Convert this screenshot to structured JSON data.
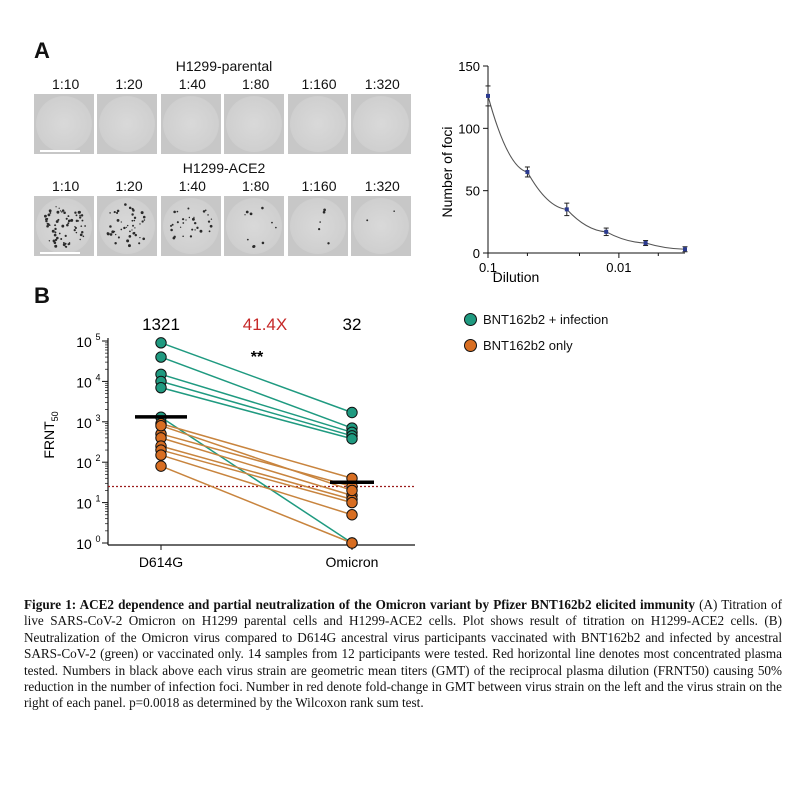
{
  "panel_a": {
    "letter": "A",
    "parental_title": "H1299-parental",
    "ace2_title": "H1299-ACE2",
    "dilutions": [
      "1:10",
      "1:20",
      "1:40",
      "1:80",
      "1:160",
      "1:320"
    ]
  },
  "panel_b": {
    "letter": "B",
    "gmt_d614g": "1321",
    "fold_change": "41.4X",
    "significance": "**",
    "gmt_omicron": "32",
    "legend_infection": "BNT162b2 + infection",
    "legend_only": "BNT162b2 only"
  },
  "colors": {
    "green": "#1f9a80",
    "orange": "#d86e22",
    "red_line": "#9b1c1c",
    "fold_red": "#c62828",
    "curve_point": "#2b3a8f"
  },
  "chart_data": [
    {
      "type": "line",
      "title": "",
      "xlabel": "Dilution",
      "ylabel": "Number of foci",
      "x_scale": "log",
      "x": [
        0.1,
        0.05,
        0.025,
        0.0125,
        0.00625,
        0.003125
      ],
      "y": [
        126,
        65,
        35,
        17,
        8,
        3
      ],
      "y_err": [
        8,
        4,
        5,
        3,
        2,
        2
      ],
      "xlim": [
        0.1,
        0.003125
      ],
      "ylim": [
        0,
        150
      ],
      "x_ticks": [
        "0.1",
        "0.01"
      ],
      "y_ticks": [
        "0",
        "50",
        "100",
        "150"
      ]
    },
    {
      "type": "scatter",
      "title": "",
      "xlabel": "",
      "ylabel": "FRNT",
      "ylabel_sub": "50",
      "y_scale": "log",
      "ylim": [
        1,
        100000
      ],
      "categories": [
        "D614G",
        "Omicron"
      ],
      "y_ticks": [
        "10",
        "10",
        "10",
        "10",
        "10",
        "10"
      ],
      "y_tick_exponents": [
        "0",
        "1",
        "2",
        "3",
        "4",
        "5"
      ],
      "gmt": [
        1321,
        32
      ],
      "threshold": 25,
      "series": [
        {
          "name": "BNT162b2 + infection",
          "color": "green",
          "pairs": [
            [
              90000,
              1700
            ],
            [
              40000,
              700
            ],
            [
              15000,
              550
            ],
            [
              10000,
              450
            ],
            [
              7000,
              380
            ],
            [
              1300,
              1
            ]
          ]
        },
        {
          "name": "BNT162b2 only",
          "color": "orange",
          "pairs": [
            [
              900,
              40
            ],
            [
              500,
              25
            ],
            [
              400,
              15
            ],
            [
              250,
              12
            ],
            [
              200,
              10
            ],
            [
              150,
              5
            ],
            [
              80,
              1
            ],
            [
              800,
              20
            ]
          ]
        }
      ]
    }
  ],
  "caption": {
    "bold": "Figure 1: ACE2 dependence and partial neutralization of the Omicron variant by Pfizer BNT162b2 elicited immunity",
    "text": " (A) Titration of live SARS-CoV-2 Omicron on H1299 parental cells and H1299-ACE2 cells. Plot shows result of titration on H1299-ACE2 cells. (B) Neutralization of the Omicron virus compared to D614G ancestral virus participants vaccinated with BNT162b2 and infected by ancestral SARS-CoV-2 (green) or vaccinated only. 14 samples from 12 participants were tested. Red horizontal line denotes most concentrated plasma tested. Numbers in black above each virus strain are geometric mean titers (GMT) of the reciprocal plasma dilution (FRNT50) causing 50% reduction in the number of infection foci. Number in red denote fold-change in GMT between virus strain on the left and the virus strain on the right of each panel. p=0.0018 as determined by the Wilcoxon rank sum test."
  }
}
